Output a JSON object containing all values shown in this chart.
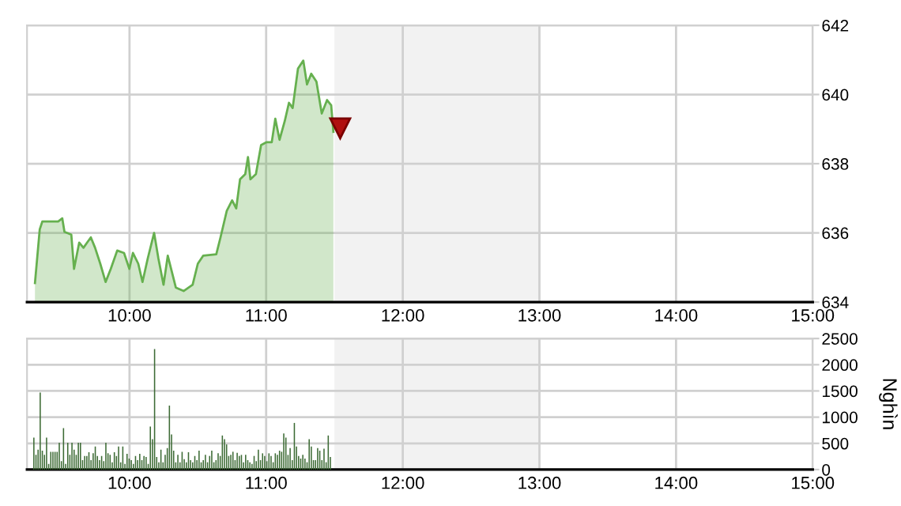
{
  "chart_data": [
    {
      "type": "area",
      "x": [
        9.308,
        9.343,
        9.362,
        9.478,
        9.508,
        9.524,
        9.574,
        9.594,
        9.632,
        9.663,
        9.69,
        9.717,
        9.748,
        9.786,
        9.825,
        9.863,
        9.91,
        9.96,
        9.999,
        10.025,
        10.064,
        10.095,
        10.134,
        10.18,
        10.211,
        10.249,
        10.28,
        10.339,
        10.396,
        10.462,
        10.5,
        10.539,
        10.635,
        10.666,
        10.712,
        10.751,
        10.781,
        10.809,
        10.847,
        10.867,
        10.885,
        10.925,
        10.963,
        11.001,
        11.041,
        11.067,
        11.098,
        11.136,
        11.167,
        11.194,
        11.233,
        11.272,
        11.299,
        11.33,
        11.368,
        11.407,
        11.446,
        11.476,
        11.492
      ],
      "series": [
        {
          "color": "#66b04f",
          "values": [
            634.55,
            636.1,
            636.33,
            636.33,
            636.42,
            636.03,
            635.95,
            634.96,
            635.72,
            635.57,
            635.72,
            635.87,
            635.57,
            635.11,
            634.58,
            634.96,
            635.49,
            635.42,
            634.96,
            635.42,
            635.11,
            634.58,
            635.27,
            636.0,
            635.27,
            634.5,
            635.34,
            634.42,
            634.32,
            634.5,
            635.11,
            635.34,
            635.38,
            635.87,
            636.64,
            636.94,
            636.71,
            637.55,
            637.7,
            638.19,
            637.55,
            637.7,
            638.54,
            638.62,
            638.62,
            639.3,
            638.69,
            639.23,
            639.76,
            639.61,
            640.75,
            640.98,
            640.29,
            640.6,
            640.37,
            639.45,
            639.84,
            639.69,
            638.92
          ]
        }
      ],
      "xlim": [
        9.25,
        15
      ],
      "xticks": [
        {
          "value": 10,
          "label": "10:00"
        },
        {
          "value": 11,
          "label": "11:00"
        },
        {
          "value": 12,
          "label": "12:00"
        },
        {
          "value": 13,
          "label": "13:00"
        },
        {
          "value": 14,
          "label": "14:00"
        },
        {
          "value": 15,
          "label": "15:00"
        }
      ],
      "ylim": [
        634,
        642
      ],
      "yticks": [
        634,
        636,
        638,
        640,
        642
      ],
      "grid": true,
      "bands": [
        {
          "axis": "x",
          "from": 11.5,
          "to": 13,
          "color": "#f2f2f2"
        }
      ]
    },
    {
      "type": "bar",
      "ylabel": "Nghìn",
      "x": [
        9.3,
        9.3155,
        9.331,
        9.3465,
        9.362,
        9.3775,
        9.393,
        9.4085,
        9.424,
        9.4395,
        9.455,
        9.4705,
        9.486,
        9.5015,
        9.517,
        9.5325,
        9.548,
        9.5635,
        9.579,
        9.5945,
        9.61,
        9.6255,
        9.641,
        9.6565,
        9.672,
        9.6875,
        9.703,
        9.7185,
        9.734,
        9.7495,
        9.765,
        9.7805,
        9.796,
        9.8115,
        9.827,
        9.8425,
        9.858,
        9.8735,
        9.889,
        9.9045,
        9.92,
        9.9355,
        9.951,
        9.9665,
        9.982,
        9.9975,
        10.013,
        10.0285,
        10.044,
        10.0595,
        10.075,
        10.0905,
        10.106,
        10.1215,
        10.137,
        10.1525,
        10.168,
        10.1835,
        10.199,
        10.2145,
        10.23,
        10.2455,
        10.261,
        10.2765,
        10.292,
        10.3075,
        10.323,
        10.3385,
        10.354,
        10.3695,
        10.385,
        10.4005,
        10.416,
        10.4315,
        10.447,
        10.4625,
        10.478,
        10.4935,
        10.509,
        10.5245,
        10.54,
        10.5555,
        10.571,
        10.5865,
        10.602,
        10.6175,
        10.633,
        10.6485,
        10.664,
        10.6795,
        10.695,
        10.7105,
        10.726,
        10.7415,
        10.757,
        10.7725,
        10.788,
        10.8035,
        10.819,
        10.8345,
        10.85,
        10.8655,
        10.881,
        10.8965,
        10.912,
        10.9275,
        10.943,
        10.9585,
        10.974,
        10.9895,
        11.005,
        11.0205,
        11.036,
        11.0515,
        11.067,
        11.0825,
        11.098,
        11.1135,
        11.129,
        11.1445,
        11.16,
        11.1755,
        11.191,
        11.2065,
        11.222,
        11.2375,
        11.253,
        11.2685,
        11.284,
        11.2995,
        11.315,
        11.3305,
        11.346,
        11.3615,
        11.377,
        11.3925,
        11.408,
        11.4235,
        11.439,
        11.4545,
        11.47
      ],
      "series": [
        {
          "color": "#3d6b35",
          "values": [
            610,
            280,
            380,
            1470,
            360,
            280,
            610,
            110,
            340,
            340,
            340,
            340,
            510,
            160,
            790,
            110,
            510,
            280,
            510,
            380,
            280,
            510,
            510,
            180,
            260,
            260,
            330,
            180,
            310,
            440,
            260,
            180,
            260,
            160,
            510,
            310,
            280,
            140,
            330,
            260,
            440,
            140,
            440,
            110,
            300,
            210,
            180,
            110,
            260,
            180,
            300,
            180,
            260,
            240,
            110,
            820,
            580,
            2300,
            240,
            140,
            380,
            140,
            280,
            410,
            1220,
            670,
            360,
            140,
            280,
            140,
            340,
            200,
            140,
            330,
            180,
            140,
            260,
            180,
            360,
            140,
            180,
            280,
            140,
            260,
            360,
            140,
            180,
            310,
            260,
            650,
            580,
            480,
            260,
            280,
            340,
            180,
            320,
            260,
            280,
            140,
            280,
            180,
            140,
            110,
            260,
            160,
            380,
            180,
            310,
            260,
            160,
            310,
            260,
            140,
            310,
            280,
            360,
            340,
            690,
            610,
            280,
            410,
            180,
            890,
            440,
            260,
            210,
            280,
            210,
            140,
            580,
            440,
            180,
            180,
            410,
            360,
            180,
            400,
            140,
            650,
            240
          ]
        }
      ],
      "xlim": [
        9.25,
        15
      ],
      "xticks": [
        {
          "value": 10,
          "label": "10:00"
        },
        {
          "value": 11,
          "label": "11:00"
        },
        {
          "value": 12,
          "label": "12:00"
        },
        {
          "value": 13,
          "label": "13:00"
        },
        {
          "value": 14,
          "label": "14:00"
        },
        {
          "value": 15,
          "label": "15:00"
        }
      ],
      "ylim": [
        0,
        2500
      ],
      "yticks": [
        0,
        500,
        1000,
        1500,
        2000,
        2500
      ],
      "grid": true,
      "bands": [
        {
          "axis": "x",
          "from": 11.5,
          "to": 13,
          "color": "#f2f2f2"
        }
      ]
    }
  ]
}
